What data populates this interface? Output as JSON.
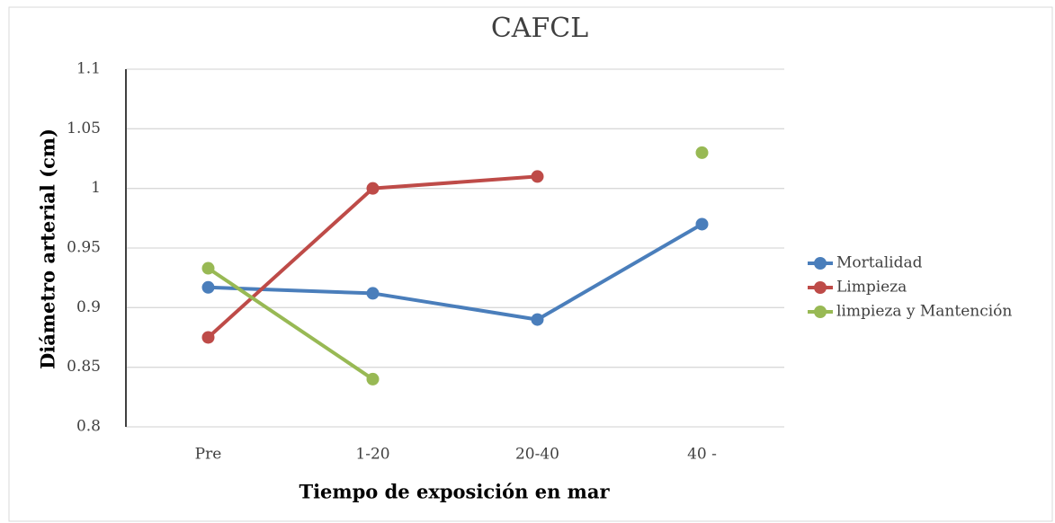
{
  "chart_data": {
    "type": "line",
    "title": "CAFCL",
    "x_label": "Tiempo de exposición en  mar",
    "y_label": "Diámetro arterial (cm)",
    "categories": [
      "Pre",
      "1-20",
      "20-40",
      "40 -"
    ],
    "series": [
      {
        "name": "Mortalidad",
        "color": "#4a7ebb",
        "values": [
          0.917,
          0.912,
          0.89,
          0.97
        ]
      },
      {
        "name": "Limpieza",
        "color": "#be4b48",
        "values": [
          0.875,
          1.0,
          1.01,
          null
        ]
      },
      {
        "name": "limpieza y Mantención",
        "color": "#98b954",
        "values": [
          0.933,
          0.84,
          null,
          1.03
        ]
      }
    ],
    "ylim": [
      0.8,
      1.1
    ],
    "yticks": [
      0.8,
      0.85,
      0.9,
      0.95,
      1,
      1.05,
      1.1
    ],
    "grid": true,
    "legend": "right"
  }
}
